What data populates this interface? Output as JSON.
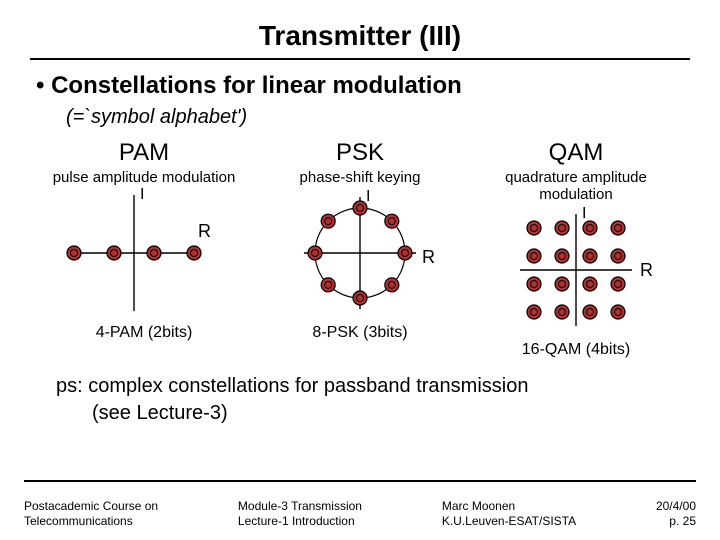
{
  "title": "Transmitter (III)",
  "bullet": "• Constellations for linear modulation",
  "subtitle": "(=`symbol alphabet')",
  "schemes": {
    "pam": {
      "name": "PAM",
      "long": "pulse amplitude modulation",
      "caption": "4-PAM (2bits)",
      "axis_i": "I",
      "axis_r": "R",
      "points": [
        [
          -60,
          0
        ],
        [
          -20,
          0
        ],
        [
          20,
          0
        ],
        [
          60,
          0
        ]
      ]
    },
    "psk": {
      "name": "PSK",
      "long": "phase-shift keying",
      "caption": "8-PSK (3bits)",
      "axis_i": "I",
      "axis_r": "R",
      "circle_r": 45,
      "n_points": 8
    },
    "qam": {
      "name": "QAM",
      "long": "quadrature amplitude modulation",
      "caption": "16-QAM (4bits)",
      "axis_i": "I",
      "axis_r": "R",
      "grid": [
        -42,
        -14,
        14,
        42
      ]
    }
  },
  "marker": {
    "r_outer": 7,
    "r_inner": 3.5,
    "fill": "#b03030",
    "stroke": "#000000",
    "stroke_w": 1.2
  },
  "axis": {
    "color": "#000000",
    "w": 1.4,
    "len": 60
  },
  "ps_lines": [
    "ps: complex constellations for passband transmission",
    "(see Lecture-3)"
  ],
  "footer": {
    "left": [
      "Postacademic Course on",
      "Telecommunications"
    ],
    "mid": [
      "Module-3 Transmission",
      "Lecture-1 Introduction"
    ],
    "right1": [
      "Marc Moonen",
      "K.U.Leuven-ESAT/SISTA"
    ],
    "right2": [
      "20/4/00",
      "p. 25"
    ]
  }
}
